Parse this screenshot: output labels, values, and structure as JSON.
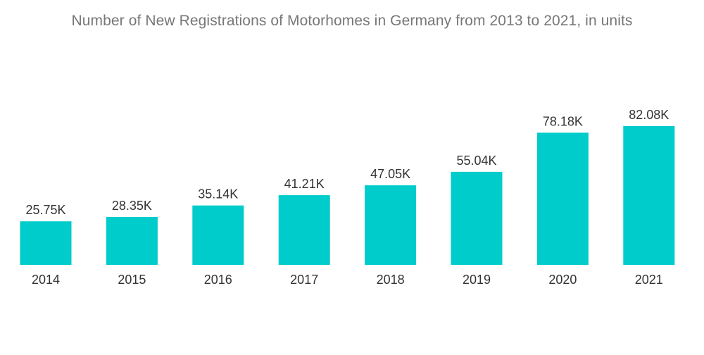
{
  "chart_data": {
    "type": "bar",
    "title": "Number of New Registrations of Motorhomes in Germany from 2013 to 2021, in units",
    "xlabel": "",
    "ylabel": "",
    "categories": [
      "2014",
      "2015",
      "2016",
      "2017",
      "2018",
      "2019",
      "2020",
      "2021"
    ],
    "values": [
      25.75,
      28.35,
      35.14,
      41.21,
      47.05,
      55.04,
      78.18,
      82.08
    ],
    "value_labels": [
      "25.75K",
      "28.35K",
      "35.14K",
      "41.21K",
      "47.05K",
      "55.04K",
      "78.18K",
      "82.08K"
    ],
    "unit": "K",
    "ylim": [
      0,
      90
    ],
    "grid": false,
    "legend": "none",
    "bar_color": "#00cccc"
  }
}
